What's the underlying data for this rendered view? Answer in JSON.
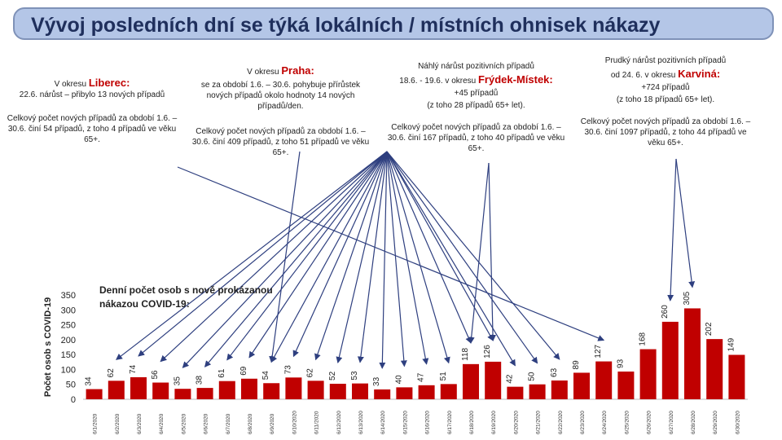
{
  "title": "Vývoj posledních dní se týká lokálních / místních ohnisek nákazy",
  "liberec": {
    "prefix": "V okresu ",
    "name": "Liberec:",
    "line1": "22.6. nárůst – přibylo 13 nových případů",
    "total": "Celkový počet nových případů za období 1.6. – 30.6. činí 54 případů, z toho 4 případů ve věku 65+."
  },
  "praha": {
    "prefix": "V okresu ",
    "name": "Praha:",
    "line1": "se za období 1.6. – 30.6. pohybuje přírůstek nových případů okolo hodnoty 14 nových případů/den.",
    "total": "Celkový počet nových případů za období 1.6. – 30.6. činí 409 případů, z toho 51 případů ve věku 65+."
  },
  "frydek": {
    "line1": "Náhlý nárůst pozitivních případů",
    "prefix": "18.6. - 19.6. v okresu ",
    "name": "Frýdek-Místek:",
    "line2": "+45 případů",
    "line3": "(z toho 28 případů 65+ let).",
    "total": "Celkový počet nových případů za období 1.6. – 30.6. činí 167 případů, z toho 40 případů ve věku 65+."
  },
  "karvina": {
    "line1": "Prudký nárůst pozitivních případů",
    "prefix": "od 24. 6. v okresu ",
    "name": "Karviná:",
    "line2": "+724 případů",
    "line3": "(z toho 18 případů 65+ let).",
    "total": "Celkový počet nových případů za období 1.6. – 30.6. činí 1097 případů, z toho 44 případů ve věku 65+."
  },
  "colors": {
    "bar": "#c00000",
    "arrow": "#2e3f7f",
    "banner": "#b4c6e7"
  },
  "chart_data": {
    "type": "bar",
    "title": "Denní počet osob s nově prokázanou nákazou COVID-19:",
    "xlabel": "",
    "ylabel": "Počet osob s COVID-19",
    "ylim": [
      0,
      350
    ],
    "yticks": [
      0,
      50,
      100,
      150,
      200,
      250,
      300,
      350
    ],
    "grid": false,
    "categories": [
      "6/1/2020",
      "6/2/2020",
      "6/3/2020",
      "6/4/2020",
      "6/5/2020",
      "6/6/2020",
      "6/7/2020",
      "6/8/2020",
      "6/9/2020",
      "6/10/2020",
      "6/11/2020",
      "6/12/2020",
      "6/13/2020",
      "6/14/2020",
      "6/15/2020",
      "6/16/2020",
      "6/17/2020",
      "6/18/2020",
      "6/19/2020",
      "6/20/2020",
      "6/21/2020",
      "6/22/2020",
      "6/23/2020",
      "6/24/2020",
      "6/25/2020",
      "6/26/2020",
      "6/27/2020",
      "6/28/2020",
      "6/29/2020",
      "6/30/2020"
    ],
    "values": [
      34,
      62,
      74,
      56,
      35,
      38,
      61,
      69,
      54,
      73,
      62,
      52,
      53,
      33,
      40,
      47,
      51,
      118,
      126,
      42,
      50,
      63,
      89,
      127,
      93,
      168,
      260,
      305,
      202,
      149
    ]
  }
}
